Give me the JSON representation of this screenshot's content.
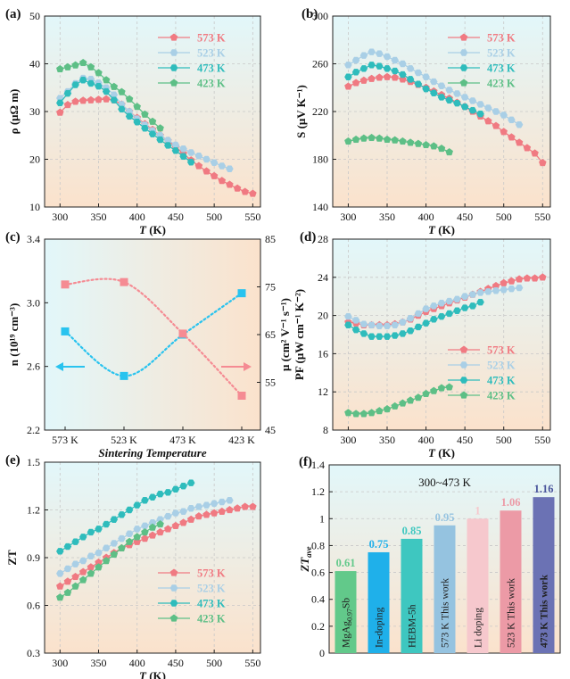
{
  "figure": {
    "colors": {
      "s573": "#f07a82",
      "s523": "#a9cfe6",
      "s473": "#2ebcbc",
      "s423": "#5dbf86",
      "blue": "#29c3ef",
      "pink": "#f58b93",
      "gridline": "#c8c8c8"
    }
  },
  "chart_data": [
    {
      "id": "a",
      "type": "line",
      "panel_label": "(a)",
      "xlabel": "T",
      "xunit": "(K)",
      "ylabel": "ρ (μΩ m)",
      "xlim": [
        280,
        560
      ],
      "ylim": [
        10,
        50
      ],
      "xticks": [
        300,
        350,
        400,
        450,
        500,
        550
      ],
      "yticks": [
        10,
        20,
        30,
        40,
        50
      ],
      "legend": "top-right",
      "series": [
        {
          "name": "573 K",
          "color": "s573",
          "x": [
            300,
            310,
            320,
            330,
            340,
            350,
            360,
            370,
            380,
            390,
            400,
            410,
            420,
            430,
            440,
            450,
            460,
            470,
            480,
            490,
            500,
            510,
            520,
            530,
            540,
            550
          ],
          "values": [
            29.8,
            31.4,
            32.1,
            32.3,
            32.4,
            32.5,
            32.6,
            32.4,
            31.5,
            30.0,
            28.7,
            27.4,
            26.2,
            25.0,
            23.9,
            22.6,
            21.2,
            19.8,
            18.6,
            17.5,
            16.5,
            15.5,
            14.7,
            13.9,
            13.2,
            12.8
          ]
        },
        {
          "name": "523 K",
          "color": "s523",
          "x": [
            300,
            310,
            320,
            330,
            340,
            350,
            360,
            370,
            380,
            390,
            400,
            410,
            420,
            430,
            440,
            450,
            460,
            470,
            480,
            490,
            500,
            510,
            520
          ],
          "values": [
            32.8,
            34.2,
            35.9,
            37.0,
            36.8,
            36.0,
            35.0,
            33.5,
            31.5,
            30.0,
            28.5,
            27.2,
            26.0,
            25.0,
            24.0,
            23.0,
            22.2,
            21.4,
            20.7,
            20.0,
            19.3,
            18.6,
            18.0
          ]
        },
        {
          "name": "473 K",
          "color": "s473",
          "x": [
            300,
            310,
            320,
            330,
            340,
            350,
            360,
            370,
            380,
            390,
            400,
            410,
            420,
            430,
            440,
            450,
            460,
            470
          ],
          "values": [
            31.8,
            33.8,
            35.6,
            36.6,
            35.9,
            35.3,
            34.2,
            32.4,
            30.5,
            29.0,
            27.8,
            26.5,
            25.3,
            24.1,
            22.9,
            21.8,
            20.6,
            19.4
          ]
        },
        {
          "name": "423 K",
          "color": "s423",
          "x": [
            300,
            310,
            320,
            330,
            340,
            350,
            360,
            370,
            380,
            390,
            400,
            410,
            420,
            430
          ],
          "values": [
            38.9,
            39.3,
            39.7,
            40.2,
            39.3,
            38.1,
            36.6,
            35.2,
            34.1,
            32.6,
            31.0,
            29.4,
            27.9,
            26.5
          ]
        }
      ]
    },
    {
      "id": "b",
      "type": "line",
      "panel_label": "(b)",
      "xlabel": "T",
      "xunit": "(K)",
      "ylabel": "S (μV K⁻¹)",
      "xlim": [
        280,
        560
      ],
      "ylim": [
        140,
        300
      ],
      "xticks": [
        300,
        350,
        400,
        450,
        500,
        550
      ],
      "yticks": [
        140,
        180,
        220,
        260,
        300
      ],
      "legend": "top-right",
      "series": [
        {
          "name": "573 K",
          "color": "s573",
          "x": [
            300,
            310,
            320,
            330,
            340,
            350,
            360,
            370,
            380,
            390,
            400,
            410,
            420,
            430,
            440,
            450,
            460,
            470,
            480,
            490,
            500,
            510,
            520,
            530,
            540,
            550
          ],
          "values": [
            241,
            244,
            246,
            247.5,
            248.5,
            249,
            248.5,
            247,
            245,
            242.5,
            240,
            237,
            234,
            231,
            227.5,
            224,
            220,
            216,
            212,
            208,
            203,
            198.5,
            194,
            189.5,
            185,
            177
          ]
        },
        {
          "name": "523 K",
          "color": "s523",
          "x": [
            300,
            310,
            320,
            330,
            340,
            350,
            360,
            370,
            380,
            390,
            400,
            410,
            420,
            430,
            440,
            450,
            460,
            470,
            480,
            490,
            500,
            510,
            520
          ],
          "values": [
            259,
            263,
            267,
            270,
            268.5,
            266,
            263,
            260,
            256,
            252.5,
            249,
            245,
            241.5,
            238,
            235,
            232,
            229,
            226,
            223,
            220,
            217,
            213,
            209
          ]
        },
        {
          "name": "473 K",
          "color": "s473",
          "x": [
            300,
            310,
            320,
            330,
            340,
            350,
            360,
            370,
            380,
            390,
            400,
            410,
            420,
            430,
            440,
            450,
            460,
            470
          ],
          "values": [
            249,
            253,
            256,
            259,
            258,
            256,
            254,
            251,
            247,
            243,
            239,
            235.5,
            232,
            229.5,
            227,
            224,
            221,
            218
          ]
        },
        {
          "name": "423 K",
          "color": "s423",
          "x": [
            300,
            310,
            320,
            330,
            340,
            350,
            360,
            370,
            380,
            390,
            400,
            410,
            420,
            430
          ],
          "values": [
            195,
            196.5,
            197.5,
            198,
            197.5,
            196.5,
            196,
            195,
            194,
            193,
            192,
            191,
            189,
            186
          ]
        }
      ]
    },
    {
      "id": "c",
      "type": "line",
      "panel_label": "(c)",
      "xlabel": "Sintering Temperature",
      "categories": [
        "573 K",
        "523 K",
        "473 K",
        "423 K"
      ],
      "ylabel": "n (10¹⁹ cm⁻³)",
      "ylim": [
        2.2,
        3.4
      ],
      "yticks": [
        2.2,
        2.6,
        3.0,
        3.4
      ],
      "y2label": "μ (cm² V⁻¹ s⁻¹)",
      "y2lim": [
        45,
        85
      ],
      "y2ticks": [
        45,
        55,
        65,
        75,
        85
      ],
      "series": [
        {
          "name": "n",
          "color": "blue",
          "axis": "left",
          "values": [
            2.82,
            2.54,
            2.8,
            3.06
          ]
        },
        {
          "name": "μ",
          "color": "pink",
          "axis": "right",
          "values": [
            75.5,
            76,
            65.2,
            52.2
          ]
        }
      ]
    },
    {
      "id": "d",
      "type": "line",
      "panel_label": "(d)",
      "xlabel": "T",
      "xunit": "(K)",
      "ylabel": "PF (μW cm⁻¹ K⁻²)",
      "xlim": [
        280,
        560
      ],
      "ylim": [
        8,
        28
      ],
      "xticks": [
        300,
        350,
        400,
        450,
        500,
        550
      ],
      "yticks": [
        8,
        12,
        16,
        20,
        24,
        28
      ],
      "legend": "bottom-right",
      "series": [
        {
          "name": "573 K",
          "color": "s573",
          "x": [
            300,
            310,
            320,
            330,
            340,
            350,
            360,
            370,
            380,
            390,
            400,
            410,
            420,
            430,
            440,
            450,
            460,
            470,
            480,
            490,
            500,
            510,
            520,
            530,
            540,
            550
          ],
          "values": [
            19.3,
            19.2,
            19.0,
            19.0,
            19.0,
            19.0,
            19.1,
            19.3,
            19.6,
            20.0,
            20.4,
            20.7,
            21.0,
            21.3,
            21.6,
            21.9,
            22.2,
            22.5,
            22.8,
            23.1,
            23.4,
            23.6,
            23.8,
            23.9,
            23.9,
            24.0
          ]
        },
        {
          "name": "523 K",
          "color": "s523",
          "x": [
            300,
            310,
            320,
            330,
            340,
            350,
            360,
            370,
            380,
            390,
            400,
            410,
            420,
            430,
            440,
            450,
            460,
            470,
            480,
            490,
            500,
            510,
            520
          ],
          "values": [
            19.9,
            19.5,
            19.1,
            19.0,
            18.9,
            18.9,
            19.0,
            19.3,
            19.7,
            20.2,
            20.7,
            21.0,
            21.3,
            21.5,
            21.7,
            22.0,
            22.2,
            22.4,
            22.5,
            22.6,
            22.7,
            22.8,
            22.9
          ]
        },
        {
          "name": "473 K",
          "color": "s473",
          "x": [
            300,
            310,
            320,
            330,
            340,
            350,
            360,
            370,
            380,
            390,
            400,
            410,
            420,
            430,
            440,
            450,
            460,
            470
          ],
          "values": [
            19.0,
            18.5,
            18.1,
            17.8,
            17.8,
            17.8,
            17.9,
            18.1,
            18.4,
            18.8,
            19.2,
            19.6,
            19.9,
            20.2,
            20.5,
            20.8,
            21.0,
            21.4
          ]
        },
        {
          "name": "423 K",
          "color": "s423",
          "x": [
            300,
            310,
            320,
            330,
            340,
            350,
            360,
            370,
            380,
            390,
            400,
            410,
            420,
            430
          ],
          "values": [
            9.8,
            9.7,
            9.7,
            9.8,
            10.0,
            10.2,
            10.5,
            10.8,
            11.1,
            11.4,
            11.8,
            12.1,
            12.4,
            12.5
          ]
        }
      ]
    },
    {
      "id": "e",
      "type": "line",
      "panel_label": "(e)",
      "xlabel": "T",
      "xunit": "(K)",
      "ylabel": "ZT",
      "xlim": [
        280,
        560
      ],
      "ylim": [
        0.3,
        1.5
      ],
      "xticks": [
        300,
        350,
        400,
        450,
        500,
        550
      ],
      "yticks": [
        0.3,
        0.6,
        0.9,
        1.2,
        1.5
      ],
      "legend": "bottom-right",
      "series": [
        {
          "name": "573 K",
          "color": "s573",
          "x": [
            300,
            310,
            320,
            330,
            340,
            350,
            360,
            370,
            380,
            390,
            400,
            410,
            420,
            430,
            440,
            450,
            460,
            470,
            480,
            490,
            500,
            510,
            520,
            530,
            540,
            550
          ],
          "values": [
            0.72,
            0.75,
            0.78,
            0.81,
            0.84,
            0.87,
            0.9,
            0.93,
            0.96,
            0.98,
            1.0,
            1.02,
            1.04,
            1.06,
            1.08,
            1.1,
            1.12,
            1.14,
            1.16,
            1.17,
            1.18,
            1.19,
            1.2,
            1.21,
            1.22,
            1.22
          ]
        },
        {
          "name": "523 K",
          "color": "s523",
          "x": [
            300,
            310,
            320,
            330,
            340,
            350,
            360,
            370,
            380,
            390,
            400,
            410,
            420,
            430,
            440,
            450,
            460,
            470,
            480,
            490,
            500,
            510,
            520
          ],
          "values": [
            0.8,
            0.83,
            0.86,
            0.88,
            0.91,
            0.93,
            0.96,
            0.99,
            1.02,
            1.05,
            1.08,
            1.1,
            1.12,
            1.14,
            1.16,
            1.18,
            1.19,
            1.21,
            1.22,
            1.23,
            1.24,
            1.25,
            1.26
          ]
        },
        {
          "name": "473 K",
          "color": "s473",
          "x": [
            300,
            310,
            320,
            330,
            340,
            350,
            360,
            370,
            380,
            390,
            400,
            410,
            420,
            430,
            440,
            450,
            460,
            470
          ],
          "values": [
            0.94,
            0.97,
            1.0,
            1.03,
            1.06,
            1.08,
            1.11,
            1.14,
            1.17,
            1.2,
            1.23,
            1.26,
            1.28,
            1.3,
            1.31,
            1.33,
            1.35,
            1.37
          ]
        },
        {
          "name": "423 K",
          "color": "s423",
          "x": [
            300,
            310,
            320,
            330,
            340,
            350,
            360,
            370,
            380,
            390,
            400,
            410,
            420,
            430
          ],
          "values": [
            0.65,
            0.68,
            0.72,
            0.76,
            0.8,
            0.84,
            0.88,
            0.92,
            0.96,
            1.0,
            1.03,
            1.06,
            1.09,
            1.11
          ]
        }
      ]
    },
    {
      "id": "f",
      "type": "bar",
      "panel_label": "(f)",
      "title": "300~473 K",
      "ylabel": "ZT_ave",
      "ylim": [
        0,
        1.4
      ],
      "yticks": [
        0,
        0.2,
        0.4,
        0.6,
        0.8,
        1.0,
        1.2,
        1.4
      ],
      "ytick_labels": [
        "0",
        "0.2",
        "0.4",
        "0.6",
        "0.8",
        "1",
        "1.2",
        "1.4"
      ],
      "categories": [
        "MgAg0.97Sb",
        "In-doping",
        "HEBM-5h",
        "573 K This work",
        "Li doping",
        "523 K This work",
        "473 K This work"
      ],
      "category_base": [
        "MgAg",
        "",
        "",
        "",
        "",
        "",
        ""
      ],
      "category_sub": [
        "0.97",
        "",
        "",
        "",
        "",
        "",
        ""
      ],
      "category_tail": [
        "Sb",
        "In-doping",
        "HEBM-5h",
        "573 K This work",
        "Li doping",
        "523 K This work",
        "473 K This work"
      ],
      "values": [
        0.61,
        0.75,
        0.85,
        0.95,
        1.0,
        1.06,
        1.16
      ],
      "value_labels": [
        "0.61",
        "0.75",
        "0.85",
        "0.95",
        "1",
        "1.06",
        "1.16"
      ],
      "colors": [
        "#62c98a",
        "#1fb0ea",
        "#3ec7c0",
        "#95c3e0",
        "#f6c8cd",
        "#ec9aa6",
        "#6b72b4"
      ]
    }
  ]
}
